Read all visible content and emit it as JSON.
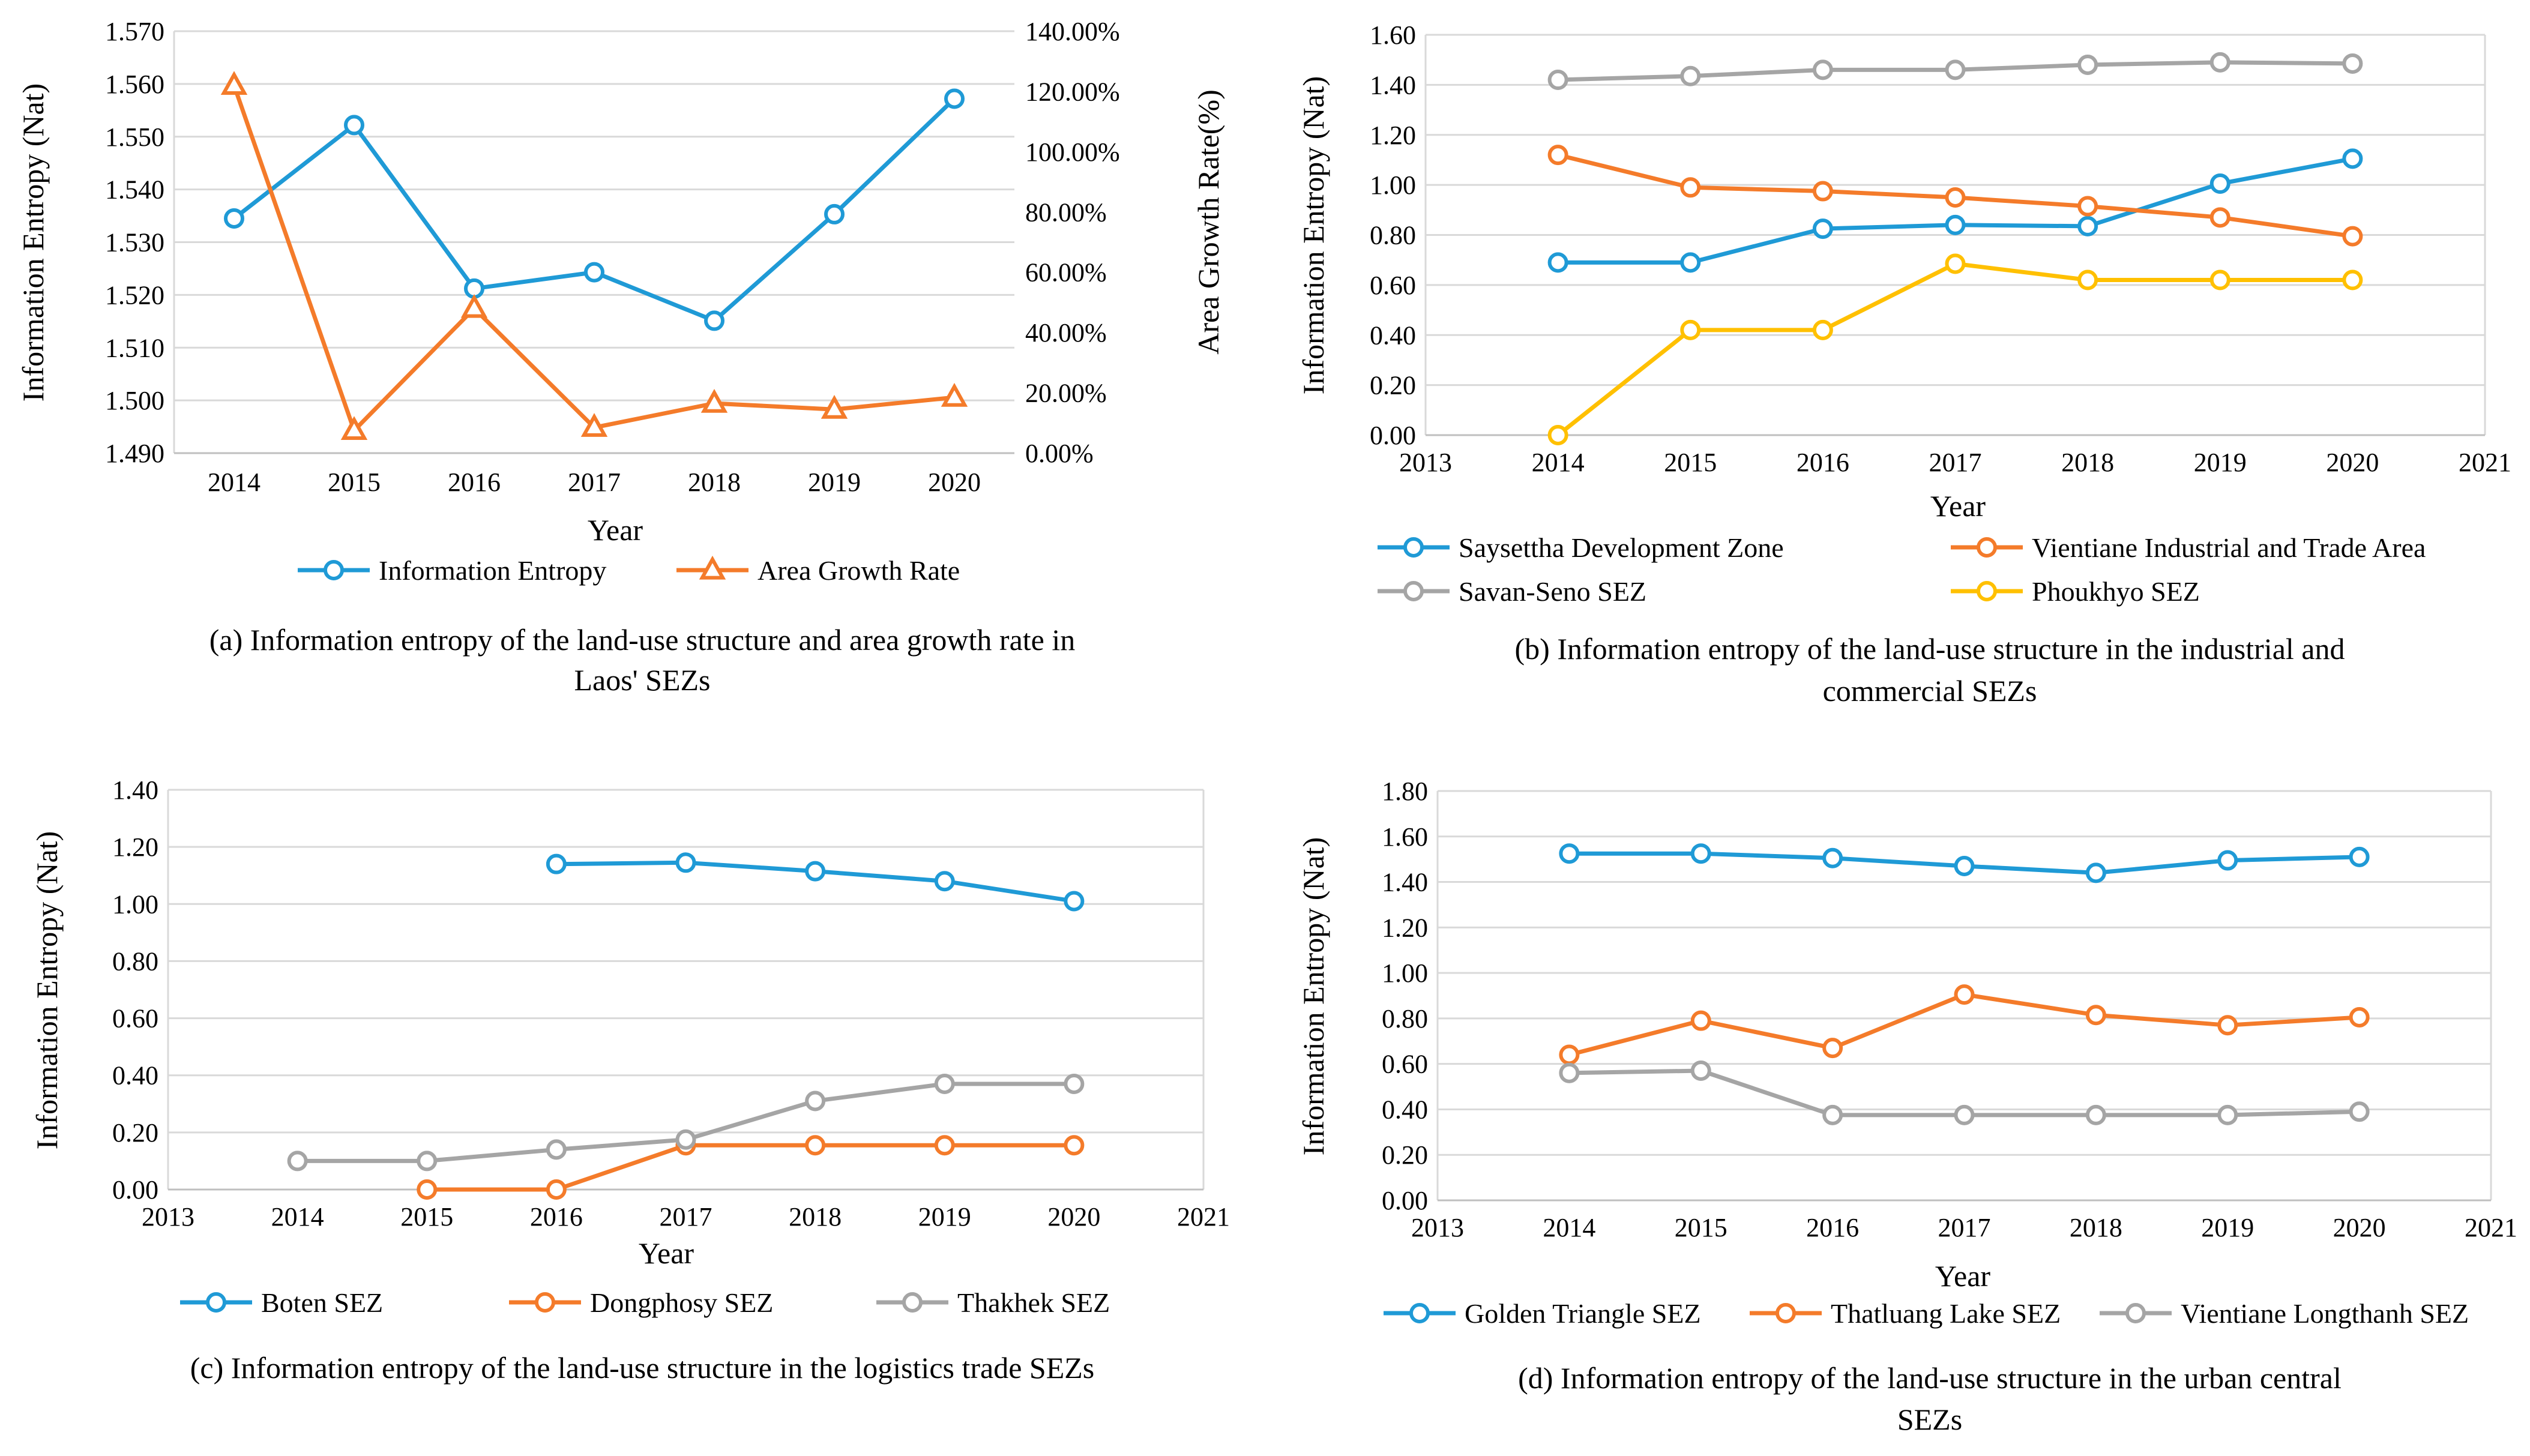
{
  "chart_data": [
    {
      "id": "a",
      "type": "line",
      "caption": [
        "(a) Information entropy of the land-use structure and area growth rate in",
        "Laos' SEZs"
      ],
      "xlabel": "Year",
      "ylabel": "Information Entropy (Nat)",
      "y2label": "Area Growth Rate(%)",
      "categories": [
        "2014",
        "2015",
        "2016",
        "2017",
        "2018",
        "2019",
        "2020"
      ],
      "ylim": [
        1.49,
        1.57
      ],
      "yticks": [
        "1.490",
        "1.500",
        "1.510",
        "1.520",
        "1.530",
        "1.540",
        "1.550",
        "1.560",
        "1.570"
      ],
      "y2lim": [
        0,
        140
      ],
      "y2ticks": [
        "0.00%",
        "20.00%",
        "40.00%",
        "60.00%",
        "80.00%",
        "100.00%",
        "120.00%",
        "140.00%"
      ],
      "grid": true,
      "series": [
        {
          "name": "Information Entropy",
          "axis": "left",
          "color": "#1f9ad6",
          "marker": "circle",
          "values": [
            1.5345,
            1.5522,
            1.5212,
            1.5243,
            1.5151,
            1.5353,
            1.5572
          ]
        },
        {
          "name": "Area Growth Rate",
          "axis": "right",
          "color": "#f47b2a",
          "marker": "triangle",
          "values": [
            122.0,
            7.5,
            48.0,
            8.5,
            16.5,
            14.5,
            18.5
          ]
        }
      ]
    },
    {
      "id": "b",
      "type": "line",
      "caption": [
        "(b) Information entropy of the land-use structure in the industrial and",
        "commercial SEZs"
      ],
      "xlabel": "Year",
      "ylabel": "Information Entropy (Nat)",
      "xlim": [
        2013,
        2021
      ],
      "xticks": [
        "2013",
        "2014",
        "2015",
        "2016",
        "2017",
        "2018",
        "2019",
        "2020",
        "2021"
      ],
      "ylim": [
        0,
        1.6
      ],
      "yticks": [
        "0.00",
        "0.20",
        "0.40",
        "0.60",
        "0.80",
        "1.00",
        "1.20",
        "1.40",
        "1.60"
      ],
      "grid": true,
      "series": [
        {
          "name": "Saysettha Development Zone",
          "color": "#1f9ad6",
          "x": [
            2014,
            2015,
            2016,
            2017,
            2018,
            2019,
            2020
          ],
          "values": [
            0.69,
            0.69,
            0.825,
            0.84,
            0.835,
            1.005,
            1.105
          ]
        },
        {
          "name": "Vientiane Industrial and Trade Area",
          "color": "#f47b2a",
          "x": [
            2014,
            2015,
            2016,
            2017,
            2018,
            2019,
            2020
          ],
          "values": [
            1.12,
            0.99,
            0.975,
            0.95,
            0.915,
            0.87,
            0.795
          ]
        },
        {
          "name": "Savan-Seno SEZ",
          "color": "#a5a5a5",
          "x": [
            2014,
            2015,
            2016,
            2017,
            2018,
            2019,
            2020
          ],
          "values": [
            1.42,
            1.435,
            1.46,
            1.46,
            1.48,
            1.49,
            1.485
          ]
        },
        {
          "name": "Phoukhyo SEZ",
          "color": "#ffc000",
          "x": [
            2014,
            2015,
            2016,
            2017,
            2018,
            2019,
            2020
          ],
          "values": [
            0.0,
            0.42,
            0.42,
            0.685,
            0.62,
            0.62,
            0.62
          ]
        }
      ]
    },
    {
      "id": "c",
      "type": "line",
      "caption": [
        "(c) Information entropy of the land-use structure in the logistics trade SEZs"
      ],
      "xlabel": "Year",
      "ylabel": "Information Entropy (Nat)",
      "xlim": [
        2013,
        2021
      ],
      "xticks": [
        "2013",
        "2014",
        "2015",
        "2016",
        "2017",
        "2018",
        "2019",
        "2020",
        "2021"
      ],
      "ylim": [
        0,
        1.4
      ],
      "yticks": [
        "0.00",
        "0.20",
        "0.40",
        "0.60",
        "0.80",
        "1.00",
        "1.20",
        "1.40"
      ],
      "grid": true,
      "series": [
        {
          "name": "Boten SEZ",
          "color": "#1f9ad6",
          "x": [
            2016,
            2017,
            2018,
            2019,
            2020
          ],
          "values": [
            1.14,
            1.145,
            1.115,
            1.08,
            1.01
          ]
        },
        {
          "name": "Dongphosy SEZ",
          "color": "#f47b2a",
          "x": [
            2015,
            2016,
            2017,
            2018,
            2019,
            2020
          ],
          "values": [
            0.0,
            0.0,
            0.155,
            0.155,
            0.155,
            0.155
          ]
        },
        {
          "name": "Thakhek SEZ",
          "color": "#a5a5a5",
          "x": [
            2014,
            2015,
            2016,
            2017,
            2018,
            2019,
            2020
          ],
          "values": [
            0.1,
            0.1,
            0.14,
            0.175,
            0.31,
            0.37,
            0.37
          ]
        }
      ]
    },
    {
      "id": "d",
      "type": "line",
      "caption": [
        "(d) Information entropy of the land-use structure in the urban central",
        "SEZs"
      ],
      "xlabel": "Year",
      "ylabel": "Information Entropy (Nat)",
      "xlim": [
        2013,
        2021
      ],
      "xticks": [
        "2013",
        "2014",
        "2015",
        "2016",
        "2017",
        "2018",
        "2019",
        "2020",
        "2021"
      ],
      "ylim": [
        0,
        1.8
      ],
      "yticks": [
        "0.00",
        "0.20",
        "0.40",
        "0.60",
        "0.80",
        "1.00",
        "1.20",
        "1.40",
        "1.60",
        "1.80"
      ],
      "grid": true,
      "series": [
        {
          "name": "Golden Triangle SEZ",
          "color": "#1f9ad6",
          "x": [
            2014,
            2015,
            2016,
            2017,
            2018,
            2019,
            2020
          ],
          "values": [
            1.525,
            1.525,
            1.505,
            1.47,
            1.44,
            1.495,
            1.51
          ]
        },
        {
          "name": "Thatluang Lake SEZ",
          "color": "#f47b2a",
          "x": [
            2014,
            2015,
            2016,
            2017,
            2018,
            2019,
            2020
          ],
          "values": [
            0.64,
            0.79,
            0.67,
            0.905,
            0.815,
            0.77,
            0.805
          ]
        },
        {
          "name": "Vientiane Longthanh SEZ",
          "color": "#a5a5a5",
          "x": [
            2014,
            2015,
            2016,
            2017,
            2018,
            2019,
            2020
          ],
          "values": [
            0.56,
            0.57,
            0.375,
            0.375,
            0.375,
            0.375,
            0.39
          ]
        }
      ]
    }
  ]
}
